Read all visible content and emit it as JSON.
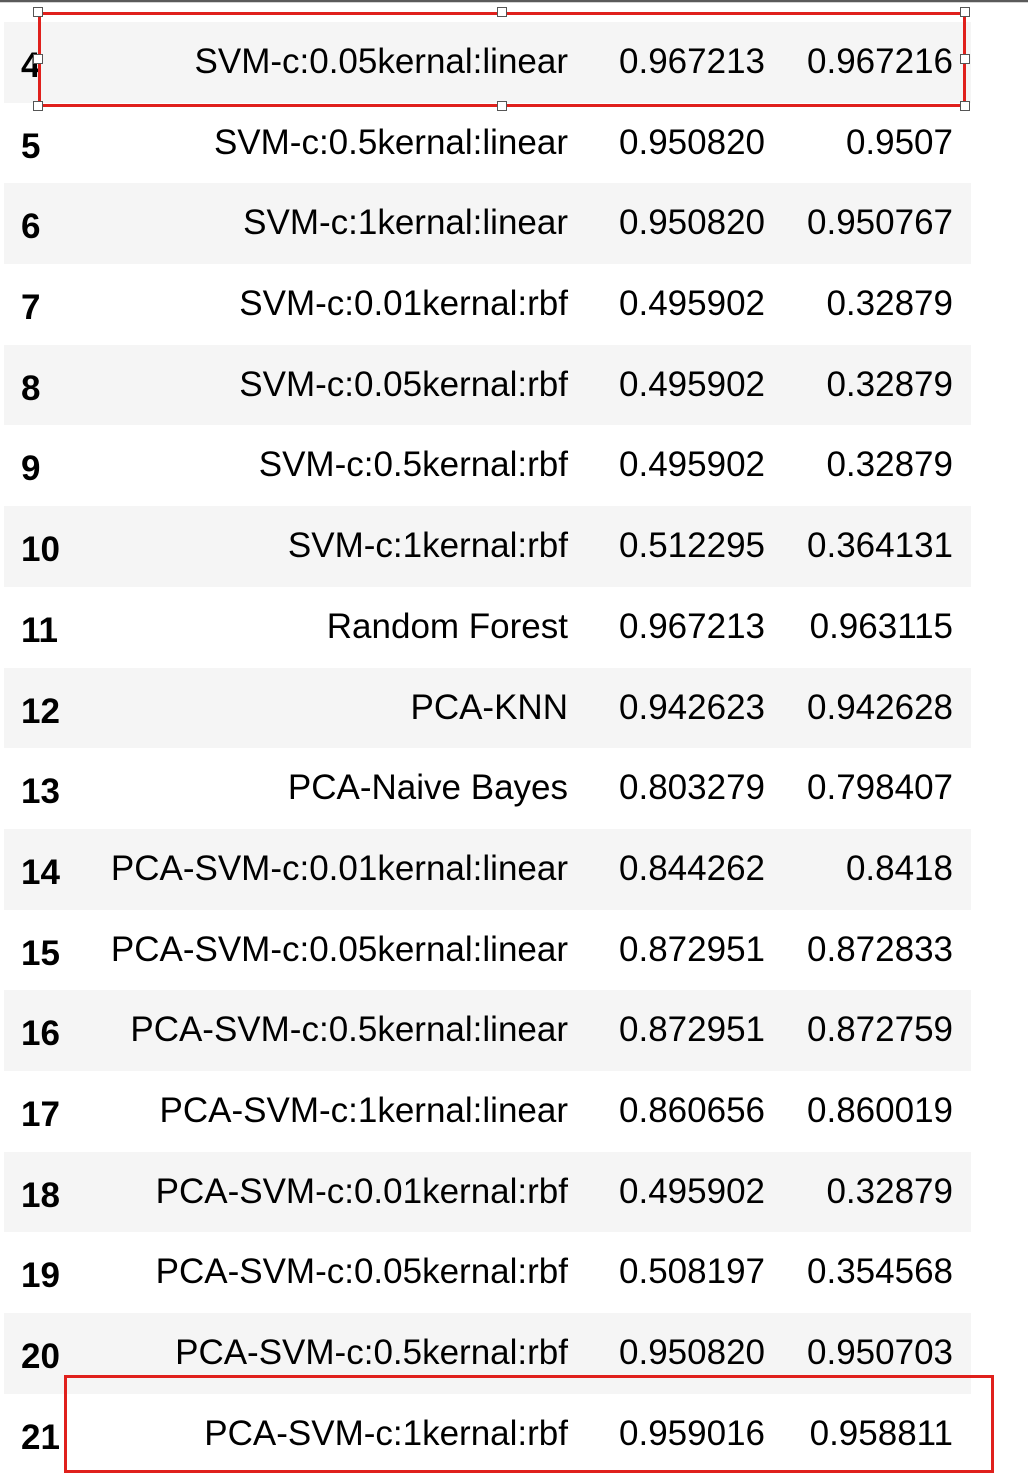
{
  "table": {
    "rows": [
      {
        "index": "4",
        "model": "SVM-c:0.05kernal:linear",
        "accuracy": "0.967213",
        "f1": "0.967216"
      },
      {
        "index": "5",
        "model": "SVM-c:0.5kernal:linear",
        "accuracy": "0.950820",
        "f1": "0.9507"
      },
      {
        "index": "6",
        "model": "SVM-c:1kernal:linear",
        "accuracy": "0.950820",
        "f1": "0.950767"
      },
      {
        "index": "7",
        "model": "SVM-c:0.01kernal:rbf",
        "accuracy": "0.495902",
        "f1": "0.32879"
      },
      {
        "index": "8",
        "model": "SVM-c:0.05kernal:rbf",
        "accuracy": "0.495902",
        "f1": "0.32879"
      },
      {
        "index": "9",
        "model": "SVM-c:0.5kernal:rbf",
        "accuracy": "0.495902",
        "f1": "0.32879"
      },
      {
        "index": "10",
        "model": "SVM-c:1kernal:rbf",
        "accuracy": "0.512295",
        "f1": "0.364131"
      },
      {
        "index": "11",
        "model": "Random Forest",
        "accuracy": "0.967213",
        "f1": "0.963115"
      },
      {
        "index": "12",
        "model": "PCA-KNN",
        "accuracy": "0.942623",
        "f1": "0.942628"
      },
      {
        "index": "13",
        "model": "PCA-Naive Bayes",
        "accuracy": "0.803279",
        "f1": "0.798407"
      },
      {
        "index": "14",
        "model": "PCA-SVM-c:0.01kernal:linear",
        "accuracy": "0.844262",
        "f1": "0.8418"
      },
      {
        "index": "15",
        "model": "PCA-SVM-c:0.05kernal:linear",
        "accuracy": "0.872951",
        "f1": "0.872833"
      },
      {
        "index": "16",
        "model": "PCA-SVM-c:0.5kernal:linear",
        "accuracy": "0.872951",
        "f1": "0.872759"
      },
      {
        "index": "17",
        "model": "PCA-SVM-c:1kernal:linear",
        "accuracy": "0.860656",
        "f1": "0.860019"
      },
      {
        "index": "18",
        "model": "PCA-SVM-c:0.01kernal:rbf",
        "accuracy": "0.495902",
        "f1": "0.32879"
      },
      {
        "index": "19",
        "model": "PCA-SVM-c:0.05kernal:rbf",
        "accuracy": "0.508197",
        "f1": "0.354568"
      },
      {
        "index": "20",
        "model": "PCA-SVM-c:0.5kernal:rbf",
        "accuracy": "0.950820",
        "f1": "0.950703"
      },
      {
        "index": "21",
        "model": "PCA-SVM-c:1kernal:rbf",
        "accuracy": "0.959016",
        "f1": "0.958811"
      }
    ]
  },
  "colors": {
    "highlight": "#e0201c",
    "stripe": "#f5f5f5"
  }
}
